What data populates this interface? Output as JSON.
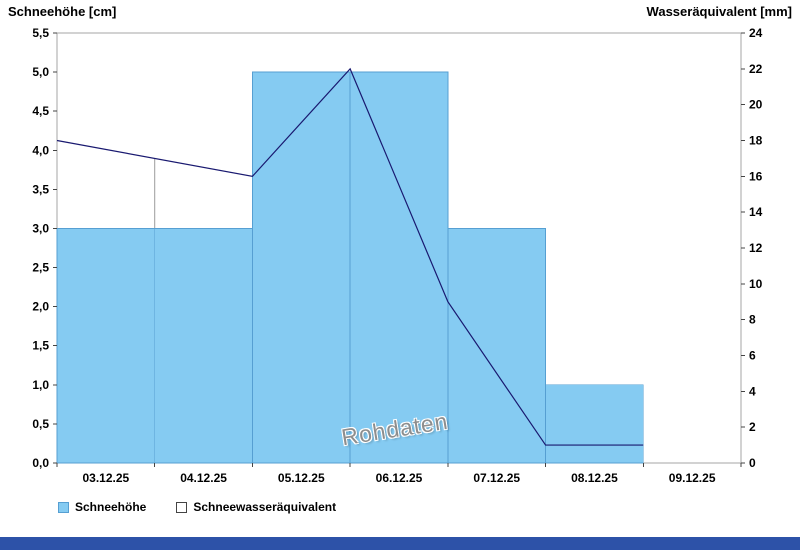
{
  "titles": {
    "left_axis_title": "Schneehöhe [cm]",
    "right_axis_title": "Wasseräquivalent [mm]"
  },
  "watermark": "Rohdaten",
  "legend": {
    "items": [
      {
        "label": "Schneehöhe",
        "swatch": "filled"
      },
      {
        "label": "Schneewasseräquivalent",
        "swatch": "outline"
      }
    ]
  },
  "colors": {
    "bar_fill": "#85CBF2",
    "bar_border": "#569FD2",
    "line": "#191970",
    "frame": "#A6A6A6",
    "bottom_strip": "#2D52A8",
    "annotation_line": "#9A9A9A"
  },
  "chart_data": {
    "type": "bar+line",
    "categories": [
      "03.12.25",
      "04.12.25",
      "05.12.25",
      "06.12.25",
      "07.12.25",
      "08.12.25",
      "09.12.25"
    ],
    "series": [
      {
        "name": "Schneehöhe",
        "type": "bar",
        "axis": "left",
        "unit": "cm",
        "values": [
          3.0,
          3.0,
          5.0,
          5.0,
          3.0,
          1.0,
          null
        ]
      },
      {
        "name": "Schneewasseräquivalent",
        "type": "line",
        "axis": "right",
        "unit": "mm",
        "points": [
          {
            "x_day": 0,
            "value": 18
          },
          {
            "x_day": 2,
            "value": 16
          },
          {
            "x_day": 3,
            "value": 22
          },
          {
            "x_day": 4,
            "value": 9
          },
          {
            "x_day": 5,
            "value": 1
          },
          {
            "x_day": 6,
            "value": 1
          }
        ]
      }
    ],
    "annotations": [
      {
        "type": "vertical-line",
        "x_day": 1,
        "from_mm": 17
      }
    ],
    "left_axis": {
      "title": "Schneehöhe [cm]",
      "min": 0,
      "max": 5.5,
      "step": 0.5,
      "tick_labels": [
        "0,0",
        "0,5",
        "1,0",
        "1,5",
        "2,0",
        "2,5",
        "3,0",
        "3,5",
        "4,0",
        "4,5",
        "5,0",
        "5,5"
      ]
    },
    "right_axis": {
      "title": "Wasseräquivalent [mm]",
      "min": 0,
      "max": 24,
      "step": 2,
      "tick_labels": [
        "0",
        "2",
        "4",
        "6",
        "8",
        "10",
        "12",
        "14",
        "16",
        "18",
        "20",
        "22",
        "24"
      ]
    },
    "grid": false,
    "legend_position": "bottom-left"
  }
}
